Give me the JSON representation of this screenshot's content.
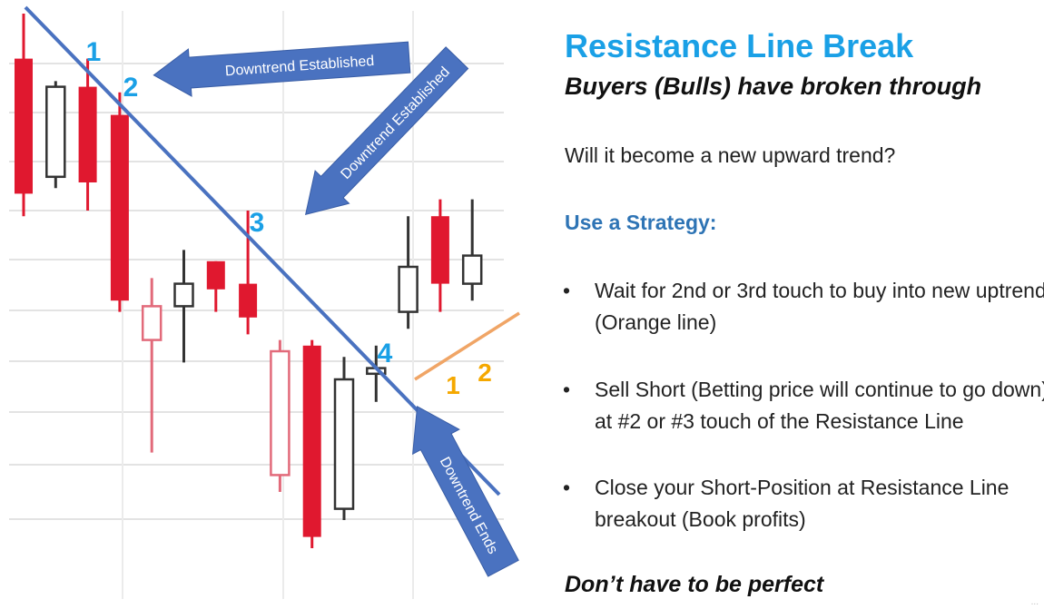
{
  "panel": {
    "title": "Resistance Line Break",
    "subtitle": "Buyers (Bulls) have broken through",
    "question": "Will it become a new upward trend?",
    "strategy_heading": "Use a Strategy:",
    "bullets": [
      {
        "marker": "•",
        "text": "Wait for 2nd or 3rd touch to buy into new uptrend (Orange line)"
      },
      {
        "marker": "•",
        "text": "Sell Short (Betting price will continue to go down) at #2 or #3 touch of the Resistance Line"
      },
      {
        "marker": "•",
        "text": "Close your Short-Position at Resistance Line breakout (Book profits)"
      }
    ],
    "footer": "Don’t have to be perfect",
    "corner_mark": "..."
  },
  "chart_data": {
    "type": "candlestick",
    "title": "",
    "xlabel": "",
    "ylabel": "",
    "grid": true,
    "ylim": [
      0,
      100
    ],
    "candles": [
      {
        "i": 1,
        "open": 92,
        "close": 68,
        "high": 100,
        "low": 64,
        "color": "red",
        "filled": true
      },
      {
        "i": 2,
        "open": 71,
        "close": 87,
        "high": 88,
        "low": 69,
        "color": "black",
        "filled": false
      },
      {
        "i": 3,
        "open": 87,
        "close": 70,
        "high": 92,
        "low": 65,
        "color": "red",
        "filled": true
      },
      {
        "i": 4,
        "open": 82,
        "close": 49,
        "high": 86,
        "low": 47,
        "color": "red",
        "filled": true
      },
      {
        "i": 5,
        "open": 48,
        "close": 42,
        "high": 53,
        "low": 22,
        "color": "red",
        "filled": false
      },
      {
        "i": 6,
        "open": 48,
        "close": 52,
        "high": 58,
        "low": 38,
        "color": "black",
        "filled": false
      },
      {
        "i": 7,
        "open": 56,
        "close": 51,
        "high": 56,
        "low": 47,
        "color": "red",
        "filled": true
      },
      {
        "i": 8,
        "open": 52,
        "close": 46,
        "high": 65,
        "low": 43,
        "color": "red",
        "filled": true
      },
      {
        "i": 9,
        "open": 40,
        "close": 18,
        "high": 42,
        "low": 15,
        "color": "red",
        "filled": false
      },
      {
        "i": 10,
        "open": 41,
        "close": 7,
        "high": 42,
        "low": 5,
        "color": "red",
        "filled": true
      },
      {
        "i": 11,
        "open": 35,
        "close": 12,
        "high": 39,
        "low": 10,
        "color": "black",
        "filled": false
      },
      {
        "i": 12,
        "open": 36,
        "close": 37,
        "high": 41,
        "low": 31,
        "color": "black",
        "filled": false
      },
      {
        "i": 13,
        "open": 47,
        "close": 55,
        "high": 64,
        "low": 44,
        "color": "black",
        "filled": false
      },
      {
        "i": 14,
        "open": 52,
        "close": 64,
        "high": 67,
        "low": 47,
        "color": "red",
        "filled": true
      },
      {
        "i": 15,
        "open": 52,
        "close": 57,
        "high": 67,
        "low": 49,
        "color": "black",
        "filled": false
      }
    ],
    "lines": [
      {
        "name": "resistance",
        "color": "#4a72c0"
      },
      {
        "name": "uptrend",
        "color": "#f0a566"
      }
    ],
    "annotations": {
      "touches_blue": [
        "1",
        "2",
        "3",
        "4"
      ],
      "touches_orange": [
        "1",
        "2"
      ],
      "arrows": [
        "Downtrend Established",
        "Downtrend Established",
        "Downtrend Ends"
      ]
    },
    "colors": {
      "bear": "#e0182f",
      "bear_hollow": "#e26a7a",
      "bull": "#333333",
      "resistance": "#4a72c0",
      "uptrend": "#f0a566",
      "arrow": "#4a72c0",
      "touch_blue": "#1aa0e6",
      "touch_orange": "#f5a800"
    }
  }
}
